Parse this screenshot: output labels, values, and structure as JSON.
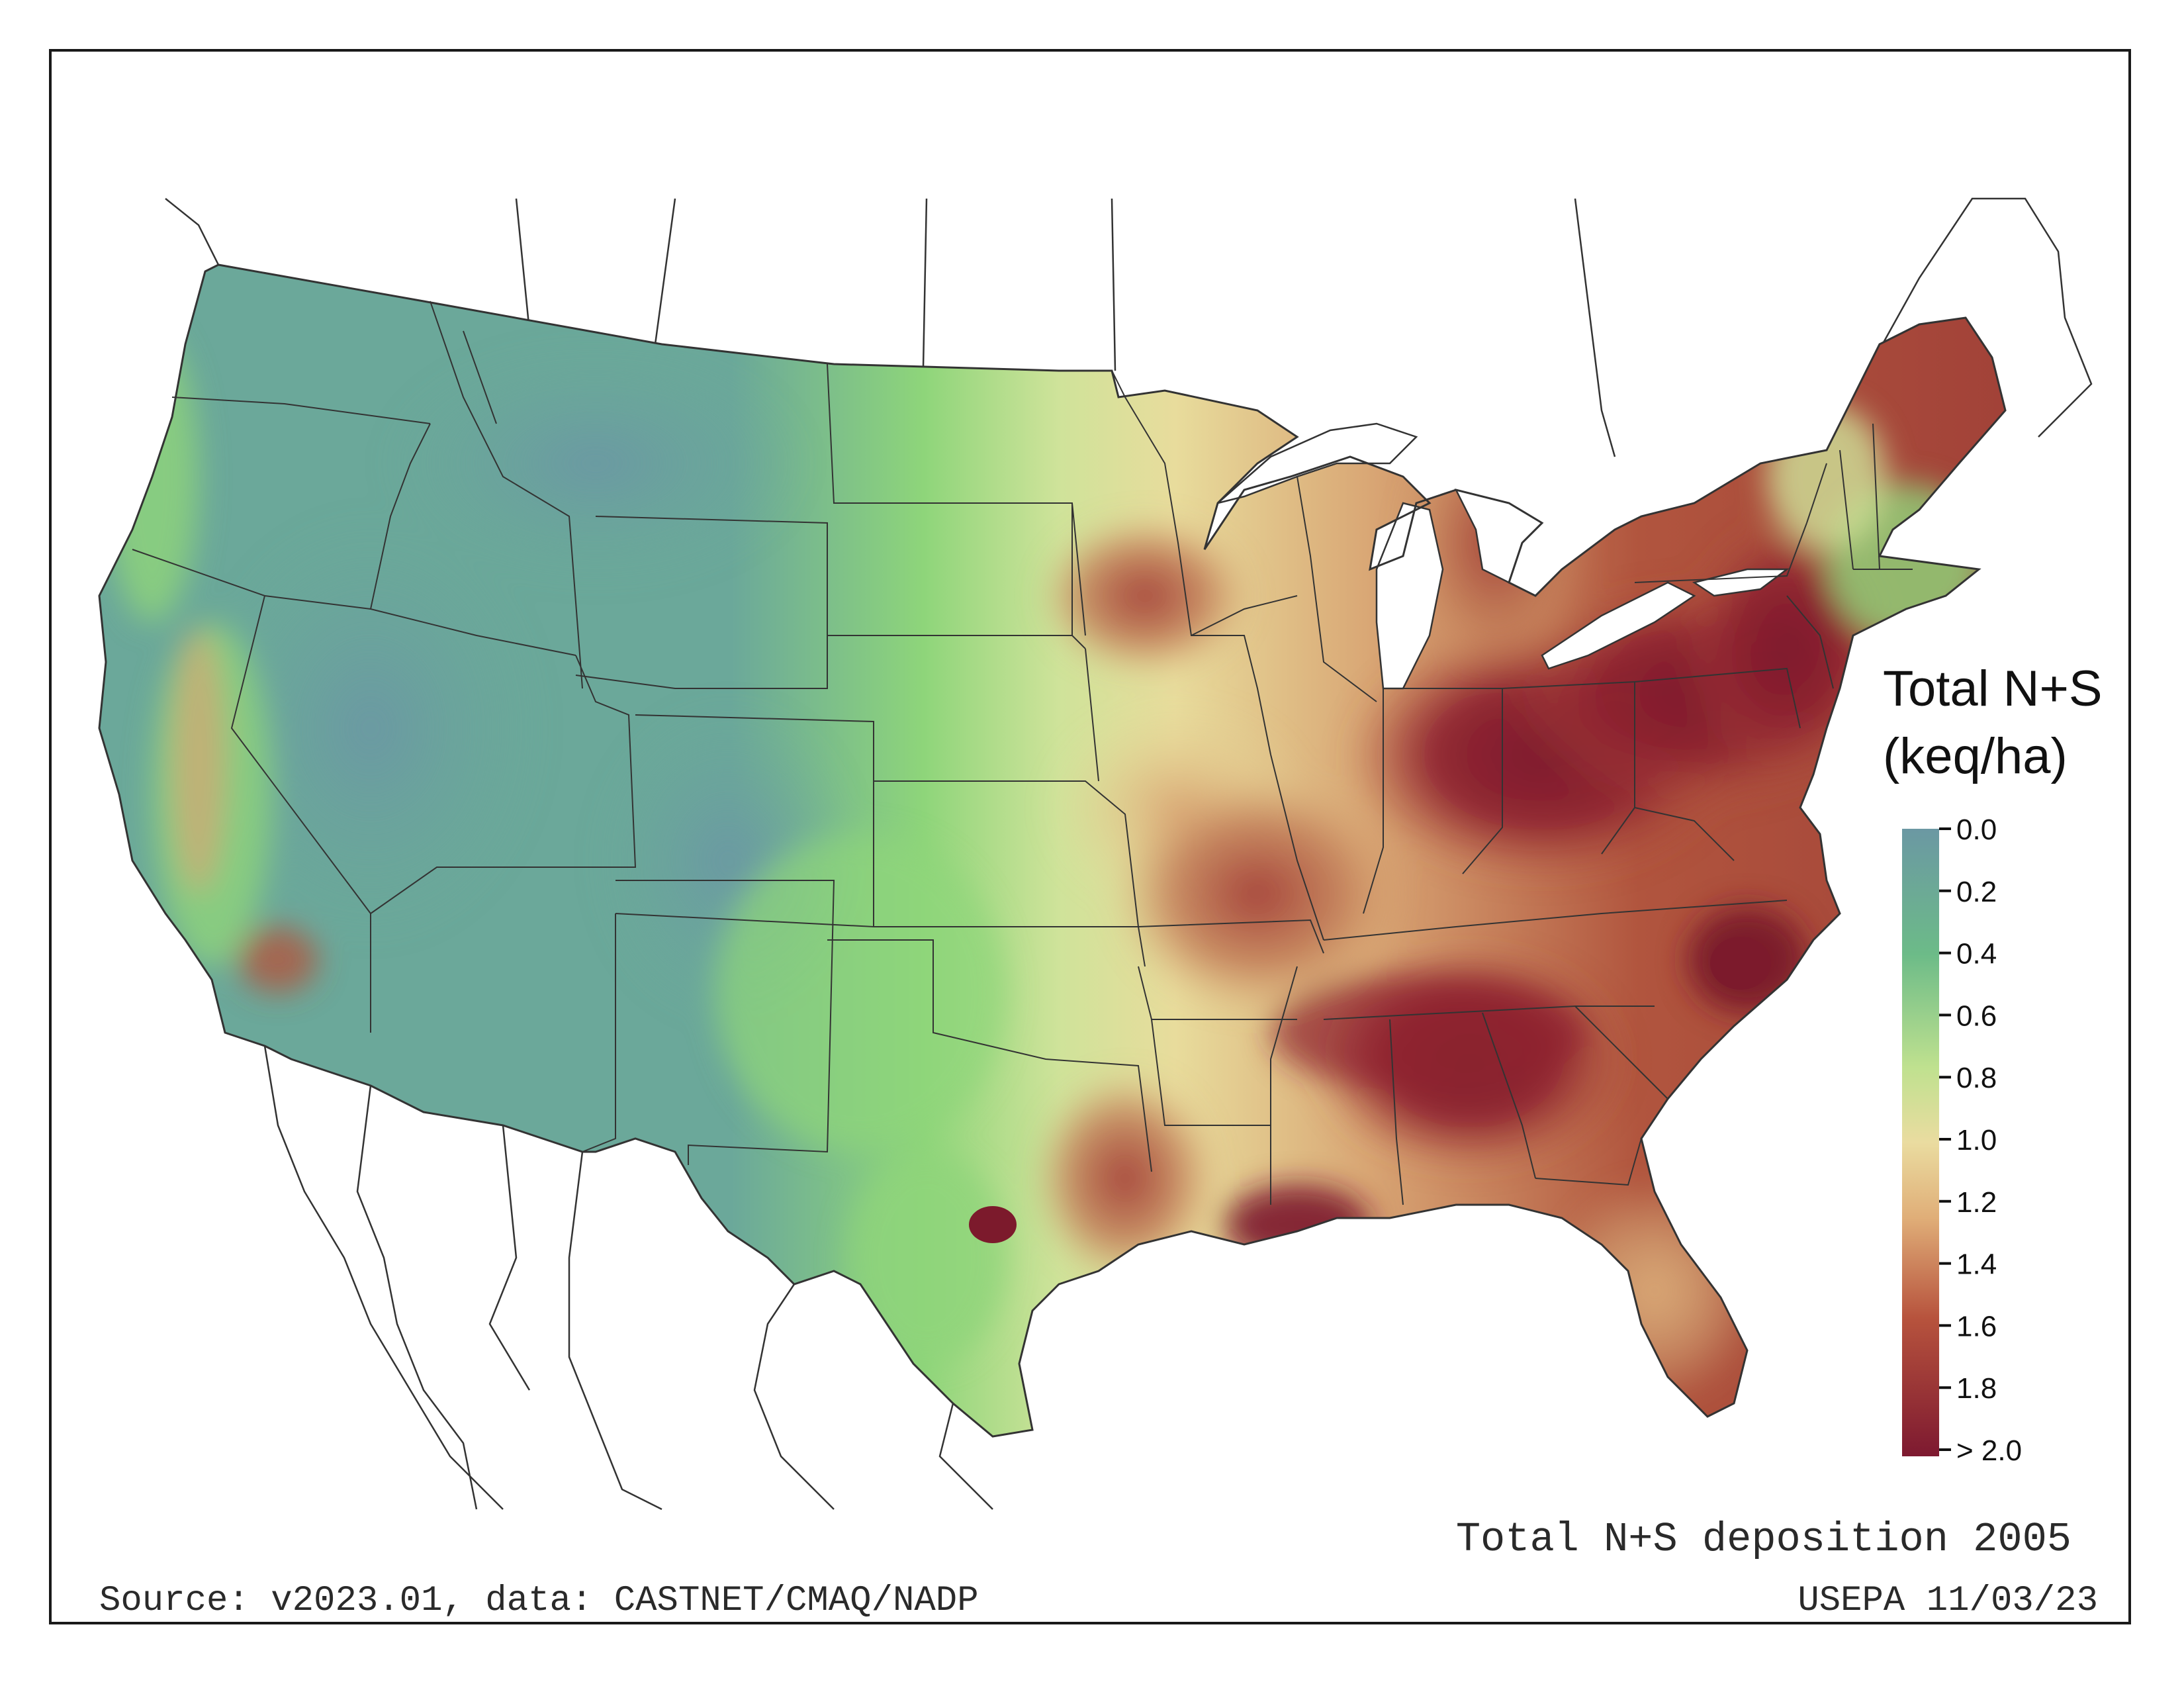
{
  "title": "Total N+S deposition 2005",
  "source": "Source: v2023.01, data: CASTNET/CMAQ/NADP",
  "agency": "USEPA 11/03/23",
  "legend": {
    "title_line1": "Total N+S",
    "title_line2": "(keq/ha)",
    "ticks": [
      "0.0",
      "0.2",
      "0.4",
      "0.6",
      "0.8",
      "1.0",
      "1.2",
      "1.4",
      "1.6",
      "1.8",
      "> 2.0"
    ],
    "colors": [
      "#6b98a3",
      "#69a996",
      "#6cbb88",
      "#8fd47e",
      "#cce39a",
      "#eadca0",
      "#e2b47c",
      "#d08a5e",
      "#b7533d",
      "#9a2b2a",
      "#7d1930"
    ]
  },
  "colors": {
    "low": "#6ba89a",
    "green": "#8ed57a",
    "light": "#e8dc9c",
    "tan": "#d8a572",
    "brown": "#b1553e",
    "dark": "#8e2230",
    "darkest": "#7c1a2c",
    "boundary": "#333333"
  }
}
